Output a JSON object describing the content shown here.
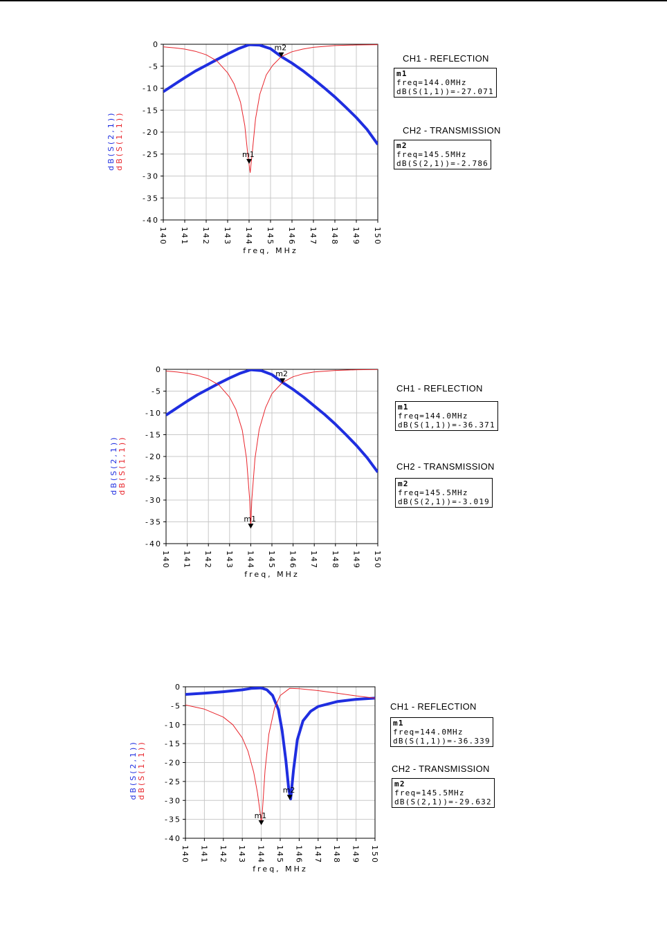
{
  "colors": {
    "s11": "#e8232a",
    "s21": "#1f2ee0",
    "grid": "#c8c8c8",
    "axis": "#000000"
  },
  "panels": [
    {
      "ch1_title": "CH1 - REFLECTION",
      "ch2_title": "CH2 - TRANSMISSION",
      "m1": {
        "name": "m1",
        "freq_text": "freq=144.0MHz",
        "value_text": "dB(S(1,1))=-27.071"
      },
      "m2": {
        "name": "m2",
        "freq_text": "freq=145.5MHz",
        "value_text": "dB(S(2,1))=-2.786"
      }
    },
    {
      "ch1_title": "CH1 - REFLECTION",
      "ch2_title": "CH2 - TRANSMISSION",
      "m1": {
        "name": "m1",
        "freq_text": "freq=144.0MHz",
        "value_text": "dB(S(1,1))=-36.371"
      },
      "m2": {
        "name": "m2",
        "freq_text": "freq=145.5MHz",
        "value_text": "dB(S(2,1))=-3.019"
      }
    },
    {
      "ch1_title": "CH1 - REFLECTION",
      "ch2_title": "CH2 - TRANSMISSION",
      "m1": {
        "name": "m1",
        "freq_text": "freq=144.0MHz",
        "value_text": "dB(S(1,1))=-36.339"
      },
      "m2": {
        "name": "m2",
        "freq_text": "freq=145.5MHz",
        "value_text": "dB(S(2,1))=-29.632"
      }
    }
  ],
  "chart_data": [
    {
      "type": "line",
      "xlabel": "freq, MHz",
      "ylabels": [
        "dB(S(2,1))",
        "dB(S(1,1))"
      ],
      "xlim": [
        140,
        150
      ],
      "ylim": [
        -40,
        0
      ],
      "xticks": [
        "140",
        "141",
        "142",
        "143",
        "144",
        "145",
        "146",
        "147",
        "148",
        "149",
        "150"
      ],
      "yticks": [
        "0",
        "-5",
        "-10",
        "-15",
        "-20",
        "-25",
        "-30",
        "-35",
        "-40"
      ],
      "grid": true,
      "series": [
        {
          "name": "dB(S(2,1))",
          "x": [
            140,
            140.5,
            141,
            141.5,
            142,
            142.5,
            143,
            143.5,
            144,
            144.5,
            145,
            145.5,
            146,
            146.5,
            147,
            147.5,
            148,
            148.5,
            149,
            149.5,
            150
          ],
          "values": [
            -10.8,
            -9.2,
            -7.6,
            -6.1,
            -4.8,
            -3.5,
            -2.2,
            -1.0,
            -0.1,
            -0.2,
            -1.0,
            -2.8,
            -4.3,
            -6.0,
            -7.9,
            -9.9,
            -12.0,
            -14.3,
            -16.7,
            -19.4,
            -22.8
          ]
        },
        {
          "name": "dB(S(1,1))",
          "x": [
            140,
            140.5,
            141,
            141.5,
            142,
            142.5,
            143,
            143.3,
            143.6,
            143.8,
            143.95,
            144.05,
            144.15,
            144.3,
            144.5,
            144.8,
            145.1,
            145.5,
            146,
            146.5,
            147,
            148,
            149,
            150
          ],
          "values": [
            -0.6,
            -0.8,
            -1.1,
            -1.6,
            -2.4,
            -3.8,
            -6.5,
            -9.0,
            -13.2,
            -18.5,
            -25.5,
            -29.2,
            -24.5,
            -17.0,
            -11.4,
            -7.0,
            -4.8,
            -2.8,
            -1.7,
            -1.1,
            -0.7,
            -0.3,
            -0.15,
            -0.1
          ]
        }
      ],
      "markers": [
        {
          "name": "m1",
          "x": 144.0,
          "y": -27.071
        },
        {
          "name": "m2",
          "x": 145.5,
          "y": -2.786
        }
      ]
    },
    {
      "type": "line",
      "xlabel": "freq, MHz",
      "ylabels": [
        "dB(S(2,1))",
        "dB(S(1,1))"
      ],
      "xlim": [
        140,
        150
      ],
      "ylim": [
        -40,
        0
      ],
      "xticks": [
        "140",
        "141",
        "142",
        "143",
        "144",
        "145",
        "146",
        "147",
        "148",
        "149",
        "150"
      ],
      "yticks": [
        "0",
        "-5",
        "-10",
        "-15",
        "-20",
        "-25",
        "-30",
        "-35",
        "-40"
      ],
      "grid": true,
      "series": [
        {
          "name": "dB(S(2,1))",
          "x": [
            140,
            140.5,
            141,
            141.5,
            142,
            142.5,
            143,
            143.5,
            144,
            144.5,
            145,
            145.5,
            146,
            146.5,
            147,
            147.5,
            148,
            148.5,
            149,
            149.5,
            150
          ],
          "values": [
            -10.5,
            -8.9,
            -7.3,
            -5.8,
            -4.5,
            -3.2,
            -2.0,
            -0.9,
            -0.1,
            -0.3,
            -1.2,
            -3.0,
            -4.6,
            -6.4,
            -8.4,
            -10.4,
            -12.6,
            -15.0,
            -17.5,
            -20.3,
            -23.6
          ]
        },
        {
          "name": "dB(S(1,1))",
          "x": [
            140,
            140.5,
            141,
            141.5,
            142,
            142.5,
            143,
            143.3,
            143.6,
            143.8,
            143.95,
            144.0,
            144.05,
            144.2,
            144.4,
            144.7,
            145.0,
            145.5,
            146,
            146.5,
            147,
            148,
            149,
            150
          ],
          "values": [
            -0.4,
            -0.6,
            -0.9,
            -1.4,
            -2.2,
            -3.6,
            -6.4,
            -9.2,
            -14.0,
            -20.5,
            -30.0,
            -36.4,
            -30.0,
            -20.5,
            -13.8,
            -8.8,
            -5.6,
            -3.0,
            -1.7,
            -1.0,
            -0.6,
            -0.25,
            -0.1,
            -0.05
          ]
        }
      ],
      "markers": [
        {
          "name": "m1",
          "x": 144.0,
          "y": -36.371
        },
        {
          "name": "m2",
          "x": 145.5,
          "y": -3.019
        }
      ]
    },
    {
      "type": "line",
      "xlabel": "freq, MHz",
      "ylabels": [
        "dB(S(2,1))",
        "dB(S(1,1))"
      ],
      "xlim": [
        140,
        150
      ],
      "ylim": [
        -40,
        0
      ],
      "xticks": [
        "140",
        "141",
        "142",
        "143",
        "144",
        "145",
        "146",
        "147",
        "148",
        "149",
        "150"
      ],
      "yticks": [
        "0",
        "-5",
        "-10",
        "-15",
        "-20",
        "-25",
        "-30",
        "-35",
        "-40"
      ],
      "grid": true,
      "series": [
        {
          "name": "dB(S(2,1))",
          "x": [
            140,
            141,
            142,
            143,
            143.5,
            144,
            144.3,
            144.6,
            144.9,
            145.1,
            145.3,
            145.45,
            145.55,
            145.7,
            145.9,
            146.2,
            146.6,
            147,
            148,
            149,
            150
          ],
          "values": [
            -2.0,
            -1.7,
            -1.3,
            -0.8,
            -0.4,
            -0.3,
            -0.8,
            -2.3,
            -6.0,
            -11.5,
            -19.5,
            -27.0,
            -29.6,
            -22.0,
            -14.0,
            -9.0,
            -6.5,
            -5.2,
            -3.9,
            -3.3,
            -3.0
          ]
        },
        {
          "name": "dB(S(1,1))",
          "x": [
            140,
            141,
            142,
            142.5,
            143,
            143.3,
            143.6,
            143.8,
            143.95,
            144.0,
            144.05,
            144.2,
            144.4,
            144.7,
            145.0,
            145.5,
            146,
            147,
            148,
            149,
            150
          ],
          "values": [
            -4.8,
            -5.9,
            -8.0,
            -10.0,
            -13.5,
            -17.0,
            -22.5,
            -28.0,
            -33.5,
            -36.3,
            -33.5,
            -22.0,
            -12.5,
            -5.6,
            -2.3,
            -0.4,
            -0.5,
            -1.0,
            -1.7,
            -2.4,
            -3.0
          ]
        }
      ],
      "markers": [
        {
          "name": "m1",
          "x": 144.0,
          "y": -36.339
        },
        {
          "name": "m2",
          "x": 145.5,
          "y": -29.632
        }
      ]
    }
  ]
}
